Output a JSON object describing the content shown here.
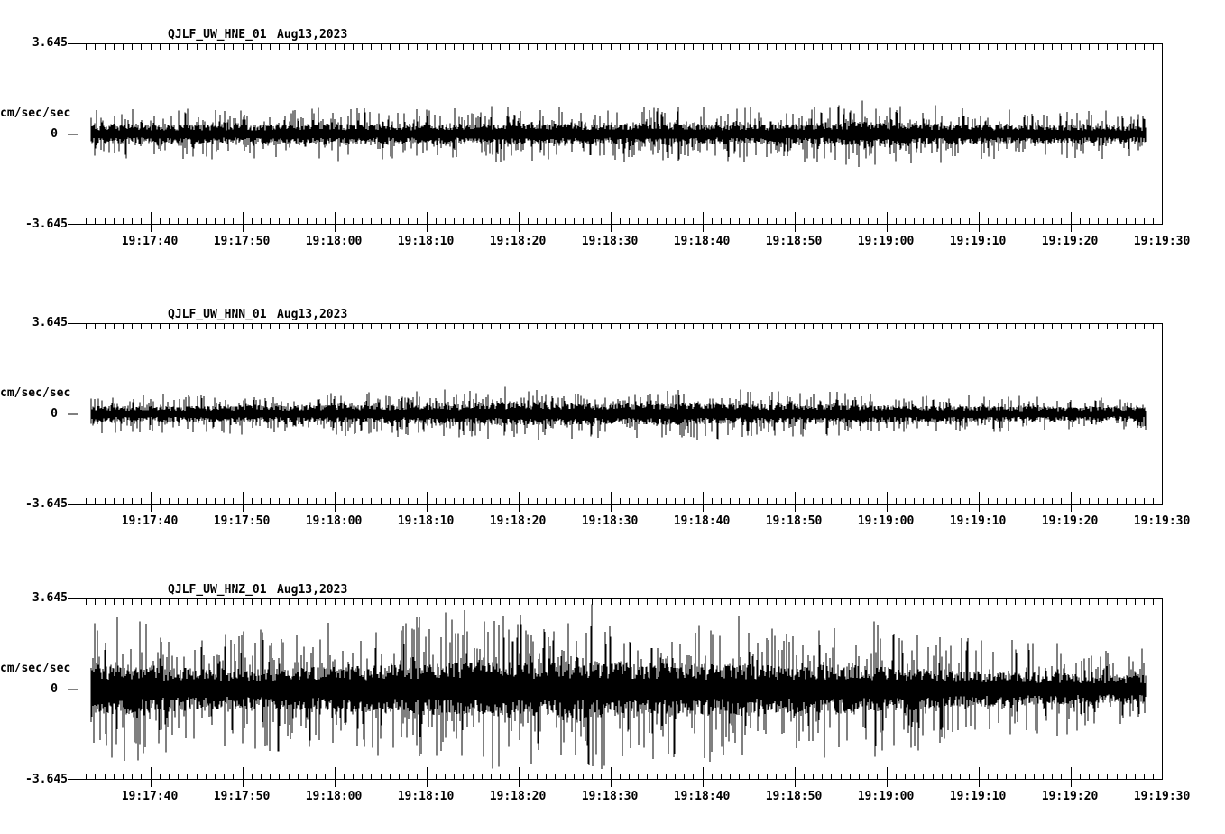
{
  "page": {
    "background": "#ffffff",
    "foreground": "#000000"
  },
  "y_axis": {
    "top": "3.645",
    "zero": "0",
    "bottom": "-3.645",
    "units": "cm/sec/sec"
  },
  "time_axis": {
    "window_start": "19:17:32",
    "window_end": "19:19:30",
    "major_interval_sec": 10,
    "minor_interval_sec": 1,
    "labels": [
      "19:17:40",
      "19:17:50",
      "19:18:00",
      "19:18:10",
      "19:18:20",
      "19:18:30",
      "19:18:40",
      "19:18:50",
      "19:19:00",
      "19:19:10",
      "19:19:20",
      "19:19:30"
    ]
  },
  "chart_data": {
    "type": "line",
    "kind": "seismogram-noise-traces",
    "title": "",
    "xlabel": "",
    "ylabel": "cm/sec/sec",
    "ylim": [
      -3.645,
      3.645
    ],
    "x_window": [
      "19:17:32",
      "19:19:30"
    ],
    "x_major_tick_labels": [
      "19:17:40",
      "19:17:50",
      "19:18:00",
      "19:18:10",
      "19:18:20",
      "19:18:30",
      "19:18:40",
      "19:18:50",
      "19:19:00",
      "19:19:10",
      "19:19:20",
      "19:19:30"
    ],
    "grid": false,
    "legend": false,
    "panels": [
      {
        "station": "QJLF_UW_HNE_01",
        "date": "Aug13,2023",
        "units": "cm/sec/sec",
        "trace_start": "19:17:33",
        "trace_end": "19:19:28",
        "mean": 0,
        "envelope_interval_sec": 5,
        "peak_envelope_cmss": [
          1.05,
          1.0,
          1.1,
          1.0,
          1.05,
          1.15,
          1.1,
          1.05,
          1.1,
          1.2,
          1.15,
          1.1,
          1.2,
          1.15,
          1.1,
          1.15,
          1.1,
          1.5,
          1.25,
          1.1,
          1.05,
          1.0,
          1.0,
          0.95
        ],
        "core_envelope_ratio": 0.3,
        "seed": 101
      },
      {
        "station": "QJLF_UW_HNN_01",
        "date": "Aug13,2023",
        "units": "cm/sec/sec",
        "trace_start": "19:17:33",
        "trace_end": "19:19:28",
        "mean": 0,
        "envelope_interval_sec": 5,
        "peak_envelope_cmss": [
          0.8,
          0.75,
          0.8,
          0.85,
          0.85,
          0.9,
          0.9,
          0.95,
          1.0,
          1.1,
          1.15,
          1.0,
          1.05,
          1.1,
          1.0,
          0.95,
          0.9,
          0.85,
          0.8,
          0.78,
          0.75,
          0.72,
          0.7,
          0.65
        ],
        "core_envelope_ratio": 0.34,
        "seed": 202
      },
      {
        "station": "QJLF_UW_HNZ_01",
        "date": "Aug13,2023",
        "units": "cm/sec/sec",
        "trace_start": "19:17:33",
        "trace_end": "19:19:28",
        "mean": 0,
        "envelope_interval_sec": 5,
        "peak_envelope_cmss": [
          2.9,
          3.0,
          2.6,
          2.4,
          2.5,
          2.7,
          2.8,
          3.0,
          3.2,
          3.4,
          3.3,
          3.45,
          3.2,
          3.0,
          3.1,
          2.9,
          3.0,
          2.8,
          2.5,
          2.2,
          2.0,
          1.9,
          1.7,
          1.8
        ],
        "core_envelope_ratio": 0.28,
        "seed": 303
      }
    ]
  }
}
